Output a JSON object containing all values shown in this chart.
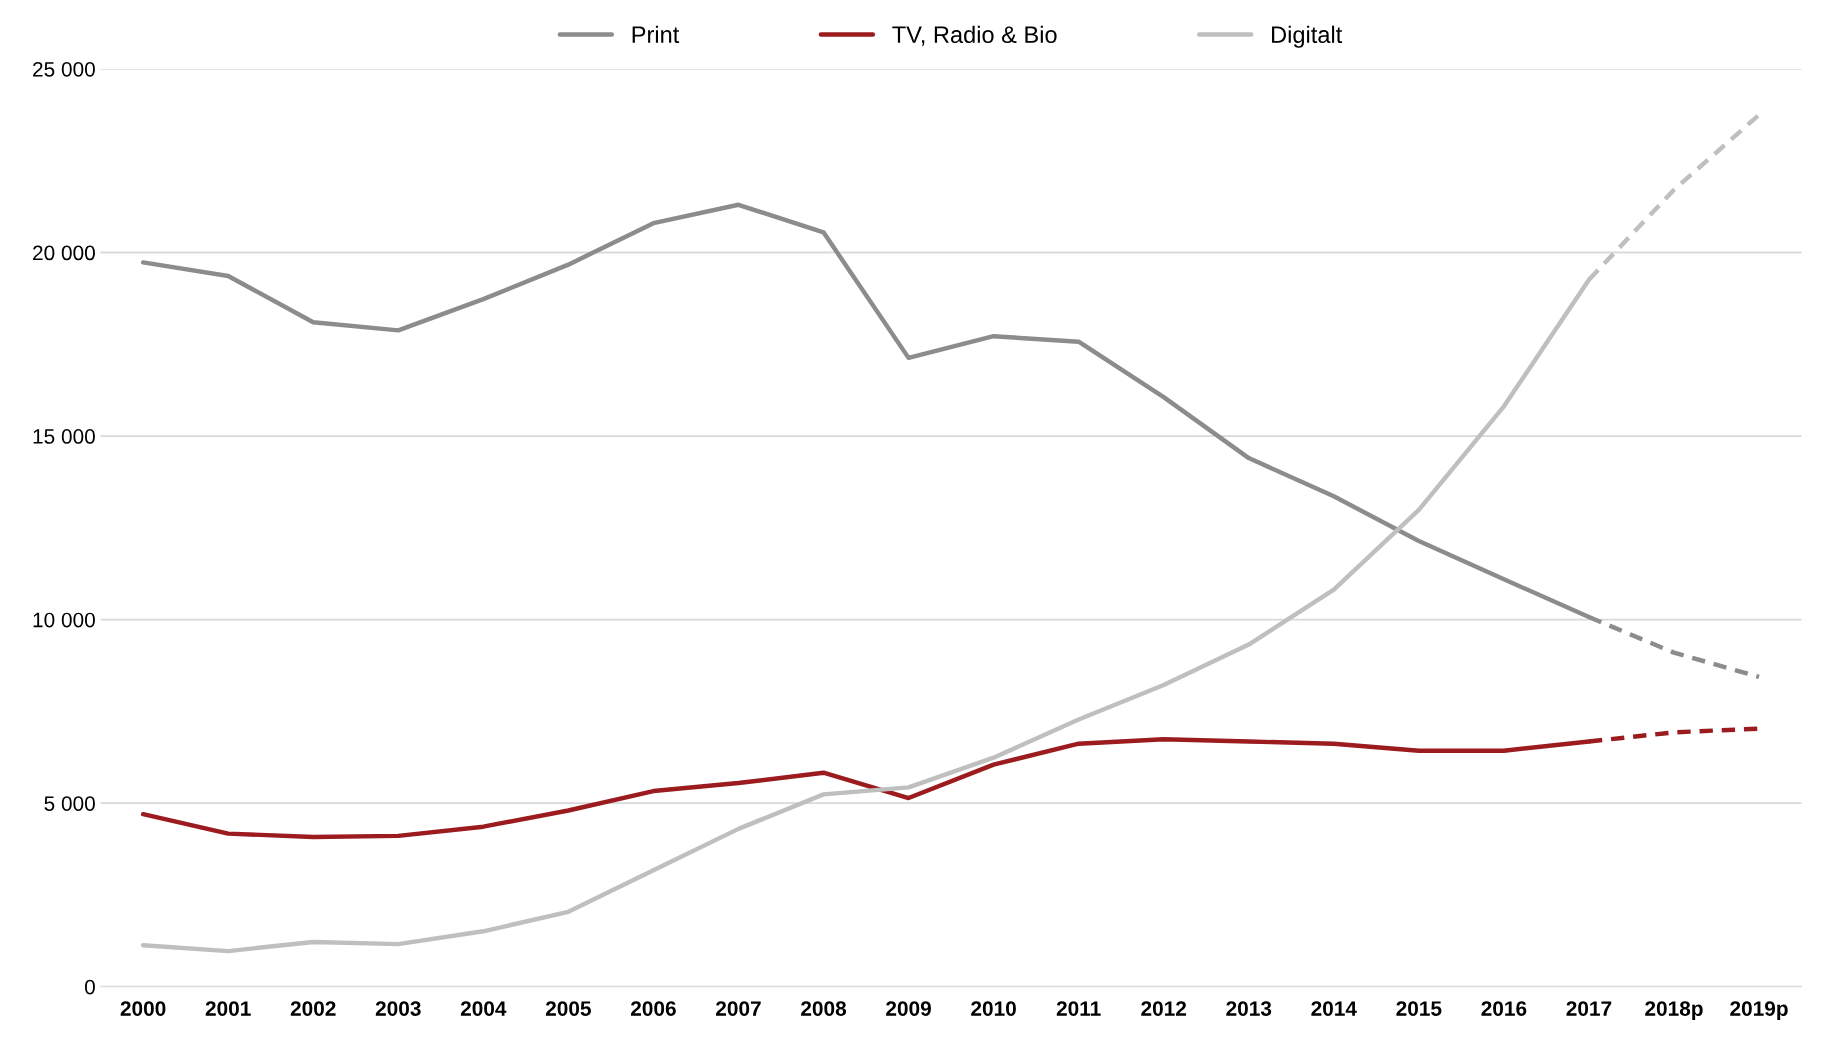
{
  "chart_data": {
    "type": "line",
    "categories": [
      "2000",
      "2001",
      "2002",
      "2003",
      "2004",
      "2005",
      "2006",
      "2007",
      "2008",
      "2009",
      "2010",
      "2011",
      "2012",
      "2013",
      "2014",
      "2015",
      "2016",
      "2017",
      "2018p",
      "2019p"
    ],
    "series": [
      {
        "name": "Print",
        "color": "#8c8c8c",
        "line_style": "solid",
        "values": [
          19730,
          19360,
          18100,
          17880,
          18730,
          19670,
          20800,
          21300,
          20550,
          17130,
          17720,
          17570,
          16060,
          14400,
          13360,
          12140,
          11100,
          10070,
          null,
          null
        ]
      },
      {
        "name": "TV, Radio & Bio",
        "color": "#9b1b1e",
        "line_style": "solid",
        "values": [
          4700,
          4170,
          4080,
          4110,
          4360,
          4800,
          5330,
          5550,
          5830,
          5140,
          6050,
          6620,
          6740,
          6680,
          6620,
          6430,
          6430,
          6680,
          null,
          null
        ]
      },
      {
        "name": "Digitalt",
        "color": "#bfbfbf",
        "line_style": "solid",
        "values": [
          1130,
          970,
          1220,
          1160,
          1510,
          2040,
          3170,
          4300,
          5240,
          5430,
          6240,
          7280,
          8220,
          9320,
          10820,
          12990,
          15810,
          19260,
          null,
          null
        ]
      },
      {
        "color": "#8c8c8c",
        "line_style": "dashed",
        "values": [
          null,
          null,
          null,
          null,
          null,
          null,
          null,
          null,
          null,
          null,
          null,
          null,
          null,
          null,
          null,
          null,
          null,
          10070,
          9100,
          8440
        ]
      },
      {
        "color": "#9b1b1e",
        "line_style": "dashed",
        "values": [
          null,
          null,
          null,
          null,
          null,
          null,
          null,
          null,
          null,
          null,
          null,
          null,
          null,
          null,
          null,
          null,
          null,
          6680,
          6930,
          7030
        ]
      },
      {
        "color": "#bfbfbf",
        "line_style": "dashed",
        "values": [
          null,
          null,
          null,
          null,
          null,
          null,
          null,
          null,
          null,
          null,
          null,
          null,
          null,
          null,
          null,
          null,
          null,
          19260,
          21710,
          23750
        ]
      }
    ],
    "ylim": [
      0,
      25000
    ],
    "yticks": [
      0,
      {
        "value": 5000,
        "label": "5 000"
      },
      {
        "value": 10000,
        "label": "10 000"
      },
      {
        "value": 15000,
        "label": "15 000"
      },
      {
        "value": 20000,
        "label": "20 000"
      },
      {
        "value": 25000,
        "label": "25 000"
      }
    ],
    "grid": "y",
    "legend": "top",
    "marker": "none"
  }
}
